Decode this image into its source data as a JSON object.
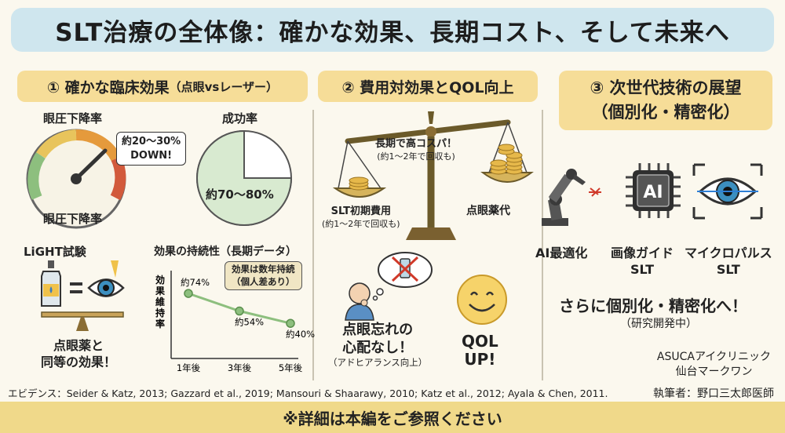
{
  "title": "SLT治療の全体像：確かな効果、長期コスト、そして未来へ",
  "section1": {
    "heading": "① 確かな臨床効果",
    "heading_small": "（点眼vsレーザー）",
    "iop": {
      "label_top": "眼圧下降率",
      "label_bottom": "眼圧下降率",
      "callout_line1": "約20〜30%",
      "callout_line2": "DOWN!"
    },
    "success": {
      "label": "成功率",
      "value_text": "約70〜80%",
      "fraction": 0.75
    },
    "light": {
      "label": "LiGHT試験",
      "caption_line1": "点眼薬と",
      "caption_line2": "同等の効果！"
    },
    "durability": {
      "label": "効果の持続性（長期データ）",
      "callout_line1": "効果は数年持続",
      "callout_line2": "（個人差あり）",
      "ylabel": "効果維持率"
    }
  },
  "chart_data": {
    "type": "line",
    "categories": [
      "1年後",
      "3年後",
      "5年後"
    ],
    "values": [
      74,
      54,
      40
    ],
    "data_labels": [
      "約74%",
      "約54%",
      "約40%"
    ],
    "ylabel": "効果維持率",
    "ylim": [
      0,
      100
    ],
    "grid": false,
    "color": "#8dbf7e"
  },
  "section2": {
    "heading": "② 費用対効果とQOL向上",
    "scale": {
      "right_callout_line1": "長期で高コスパ！",
      "right_callout_line2": "(約1〜2年で回収も)",
      "left_label_line1": "SLT初期費用",
      "left_label_line2": "(約1〜2年で回収も)",
      "right_label": "点眼薬代"
    },
    "worry": {
      "line1": "点眼忘れの",
      "line2": "心配なし！",
      "sub": "（アドヒアランス向上）"
    },
    "qol": {
      "line1": "QOL",
      "line2": "UP!"
    }
  },
  "section3": {
    "heading_line1": "③ 次世代技術の展望",
    "heading_line2": "（個別化・精密化）",
    "tech": [
      {
        "icon": "robot-arm-icon",
        "line1": "AI最適化",
        "line2": ""
      },
      {
        "icon": "ai-chip-icon",
        "chip_text": "AI",
        "line1": "画像ガイド",
        "line2": "SLT"
      },
      {
        "icon": "eye-scan-icon",
        "line1": "マイクロパルス",
        "line2": "SLT"
      }
    ],
    "future_line1": "さらに個別化・精密化へ！",
    "future_line2": "（研究開発中）"
  },
  "evidence": "エビデンス：Seider & Katz, 2013; Gazzard et al., 2019; Mansouri & Shaarawy, 2010; Katz et al., 2012; Ayala & Chen, 2011.",
  "clinic_line1": "ASUCAアイクリニック",
  "clinic_line2": "仙台マークワン",
  "author": "執筆者：野口三太郎医師",
  "footer": "※詳細は本編をご参照ください",
  "colors": {
    "title_bg": "#cfe6ee",
    "section_bg": "#f6dd98",
    "footer_bg": "#f0d98a",
    "green": "#8dbf7e",
    "gold": "#d9a93a"
  }
}
